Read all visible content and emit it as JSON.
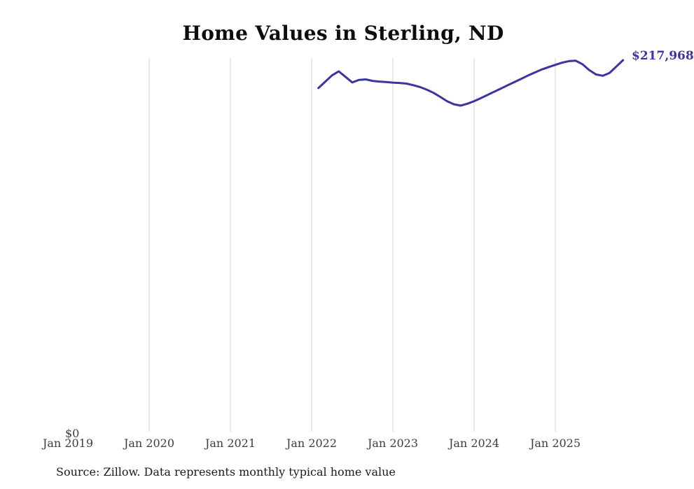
{
  "header": {
    "title": "Home Values in Sterling, ND"
  },
  "annotations": {
    "end_value_label": "$217,968"
  },
  "axes": {
    "y": {
      "zero_label": "$0"
    }
  },
  "footer": {
    "source_note": "Source: Zillow. Data represents monthly typical home value"
  },
  "colors": {
    "line": "#3a35a2",
    "end_label": "#3a35a2",
    "grid": "#d0d0d0",
    "tick_text": "#3d3d3d",
    "title_text": "#0d0d0d",
    "source_text": "#1b1b1b",
    "background": "#ffffff"
  },
  "chart_data": {
    "type": "line",
    "title": "Home Values in Sterling, ND",
    "xlabel": "",
    "ylabel": "",
    "ylim": [
      0,
      219200
    ],
    "grid": "vertical-only",
    "legend": "none",
    "final_value_label": "$217,968",
    "x_ticks": [
      {
        "label": "Jan 2019",
        "year": 2019,
        "gridline": false
      },
      {
        "label": "Jan 2020",
        "year": 2020,
        "gridline": true
      },
      {
        "label": "Jan 2021",
        "year": 2021,
        "gridline": true
      },
      {
        "label": "Jan 2022",
        "year": 2022,
        "gridline": true
      },
      {
        "label": "Jan 2023",
        "year": 2023,
        "gridline": true
      },
      {
        "label": "Jan 2024",
        "year": 2024,
        "gridline": true
      },
      {
        "label": "Jan 2025",
        "year": 2025,
        "gridline": true
      }
    ],
    "series": [
      {
        "name": "Monthly typical home value",
        "months": [
          "2022-02",
          "2022-03",
          "2022-04",
          "2022-05",
          "2022-06",
          "2022-07",
          "2022-08",
          "2022-09",
          "2022-10",
          "2022-11",
          "2022-12",
          "2023-01",
          "2023-02",
          "2023-03",
          "2023-04",
          "2023-05",
          "2023-06",
          "2023-07",
          "2023-08",
          "2023-09",
          "2023-10",
          "2023-11",
          "2023-12",
          "2024-01",
          "2024-02",
          "2024-03",
          "2024-04",
          "2024-05",
          "2024-06",
          "2024-07",
          "2024-08",
          "2024-09",
          "2024-10",
          "2024-11",
          "2024-12",
          "2025-01",
          "2025-02",
          "2025-03",
          "2025-04",
          "2025-05",
          "2025-06",
          "2025-07",
          "2025-08",
          "2025-09",
          "2025-10",
          "2025-11"
        ],
        "values": [
          201600,
          205300,
          209000,
          211400,
          208200,
          204900,
          206400,
          206700,
          205800,
          205400,
          205100,
          204800,
          204600,
          204200,
          203300,
          202200,
          200700,
          198800,
          196400,
          193900,
          192100,
          191300,
          192400,
          193900,
          195700,
          197600,
          199500,
          201400,
          203300,
          205200,
          207100,
          209000,
          210800,
          212500,
          213900,
          215200,
          216500,
          217400,
          217700,
          215600,
          212200,
          209600,
          208800,
          210400,
          214200,
          217968
        ]
      }
    ]
  }
}
